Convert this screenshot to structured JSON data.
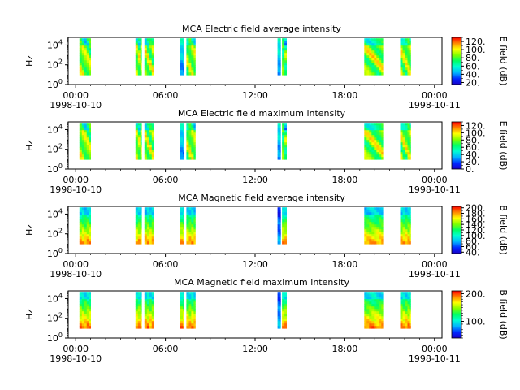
{
  "chart_data": [
    {
      "type": "heatmap",
      "title": "MCA  Electric field average intensity",
      "ylabel": "Hz",
      "y_scale": "log",
      "y_ticks": [
        {
          "value": 1,
          "base": "10",
          "exp": "0"
        },
        {
          "value": 100,
          "base": "10",
          "exp": "2"
        },
        {
          "value": 10000,
          "base": "10",
          "exp": "4"
        }
      ],
      "ylim": [
        1,
        60000
      ],
      "x_ticks": [
        "00:00",
        "06:00",
        "12:00",
        "18:00",
        "00:00"
      ],
      "x_dates": [
        "1998-10-10",
        "1998-10-11"
      ],
      "xlim_hours": [
        -0.5,
        24.5
      ],
      "colorbar_label": "E field (dB)",
      "colorbar_range": [
        15,
        130
      ],
      "colorbar_ticks": [
        "120.",
        "100.",
        "80.",
        "60.",
        "40.",
        "20."
      ],
      "colorbar_tick_values": [
        120,
        100,
        80,
        60,
        40,
        20
      ],
      "data_blocks_hours": [
        [
          0.25,
          1.0
        ],
        [
          4.0,
          4.4
        ],
        [
          4.6,
          5.2
        ],
        [
          7.0,
          7.2
        ],
        [
          7.4,
          8.0
        ],
        [
          13.5,
          13.7
        ],
        [
          13.8,
          14.1
        ],
        [
          19.3,
          20.6
        ],
        [
          21.7,
          22.4
        ]
      ]
    },
    {
      "type": "heatmap",
      "title": "MCA  Electric field maximum intensity",
      "ylabel": "Hz",
      "y_scale": "log",
      "y_ticks": [
        {
          "value": 1,
          "base": "10",
          "exp": "0"
        },
        {
          "value": 100,
          "base": "10",
          "exp": "2"
        },
        {
          "value": 10000,
          "base": "10",
          "exp": "4"
        }
      ],
      "ylim": [
        1,
        60000
      ],
      "x_ticks": [
        "00:00",
        "06:00",
        "12:00",
        "18:00",
        "00:00"
      ],
      "x_dates": [
        "1998-10-10",
        "1998-10-11"
      ],
      "xlim_hours": [
        -0.5,
        24.5
      ],
      "colorbar_label": "E field (dB)",
      "colorbar_range": [
        0,
        130
      ],
      "colorbar_ticks": [
        "120.",
        "100.",
        "80.",
        "60.",
        "40.",
        "20.",
        "0."
      ],
      "colorbar_tick_values": [
        120,
        100,
        80,
        60,
        40,
        20,
        0
      ],
      "data_blocks_hours": [
        [
          0.25,
          1.0
        ],
        [
          4.0,
          4.4
        ],
        [
          4.6,
          5.2
        ],
        [
          7.0,
          7.2
        ],
        [
          7.4,
          8.0
        ],
        [
          13.5,
          13.7
        ],
        [
          13.8,
          14.1
        ],
        [
          19.3,
          20.6
        ],
        [
          21.7,
          22.4
        ]
      ]
    },
    {
      "type": "heatmap",
      "title": "MCA  Magnetic field average intensity",
      "ylabel": "Hz",
      "y_scale": "log",
      "y_ticks": [
        {
          "value": 1,
          "base": "10",
          "exp": "0"
        },
        {
          "value": 100,
          "base": "10",
          "exp": "2"
        },
        {
          "value": 10000,
          "base": "10",
          "exp": "4"
        }
      ],
      "ylim": [
        1,
        60000
      ],
      "x_ticks": [
        "00:00",
        "06:00",
        "12:00",
        "18:00",
        "00:00"
      ],
      "x_dates": [
        "1998-10-10",
        "1998-10-11"
      ],
      "xlim_hours": [
        -0.5,
        24.5
      ],
      "colorbar_label": "B field (dB)",
      "colorbar_range": [
        35,
        205
      ],
      "colorbar_ticks": [
        "200.",
        "180.",
        "160.",
        "140.",
        "120.",
        "100.",
        "80.",
        "60.",
        "40."
      ],
      "colorbar_tick_values": [
        200,
        180,
        160,
        140,
        120,
        100,
        80,
        60,
        40
      ],
      "data_blocks_hours": [
        [
          0.25,
          1.0
        ],
        [
          4.0,
          4.4
        ],
        [
          4.6,
          5.2
        ],
        [
          7.0,
          7.2
        ],
        [
          7.4,
          8.0
        ],
        [
          13.5,
          13.7
        ],
        [
          13.8,
          14.1
        ],
        [
          19.3,
          20.6
        ],
        [
          21.7,
          22.4
        ]
      ]
    },
    {
      "type": "heatmap",
      "title": "MCA  Magnetic field maximum intensity",
      "ylabel": "Hz",
      "y_scale": "log",
      "y_ticks": [
        {
          "value": 1,
          "base": "10",
          "exp": "0"
        },
        {
          "value": 100,
          "base": "10",
          "exp": "2"
        },
        {
          "value": 10000,
          "base": "10",
          "exp": "4"
        }
      ],
      "ylim": [
        1,
        60000
      ],
      "x_ticks": [
        "00:00",
        "06:00",
        "12:00",
        "18:00",
        "00:00"
      ],
      "x_dates": [
        "1998-10-10",
        "1998-10-11"
      ],
      "xlim_hours": [
        -0.5,
        24.5
      ],
      "colorbar_label": "B field (dB)",
      "colorbar_range": [
        40,
        210
      ],
      "colorbar_ticks": [
        "200.",
        "100."
      ],
      "colorbar_tick_values": [
        200,
        100
      ],
      "data_blocks_hours": [
        [
          0.25,
          1.0
        ],
        [
          4.0,
          4.4
        ],
        [
          4.6,
          5.2
        ],
        [
          7.0,
          7.2
        ],
        [
          7.4,
          8.0
        ],
        [
          13.5,
          13.7
        ],
        [
          13.8,
          14.1
        ],
        [
          19.3,
          20.6
        ],
        [
          21.7,
          22.4
        ]
      ]
    }
  ]
}
